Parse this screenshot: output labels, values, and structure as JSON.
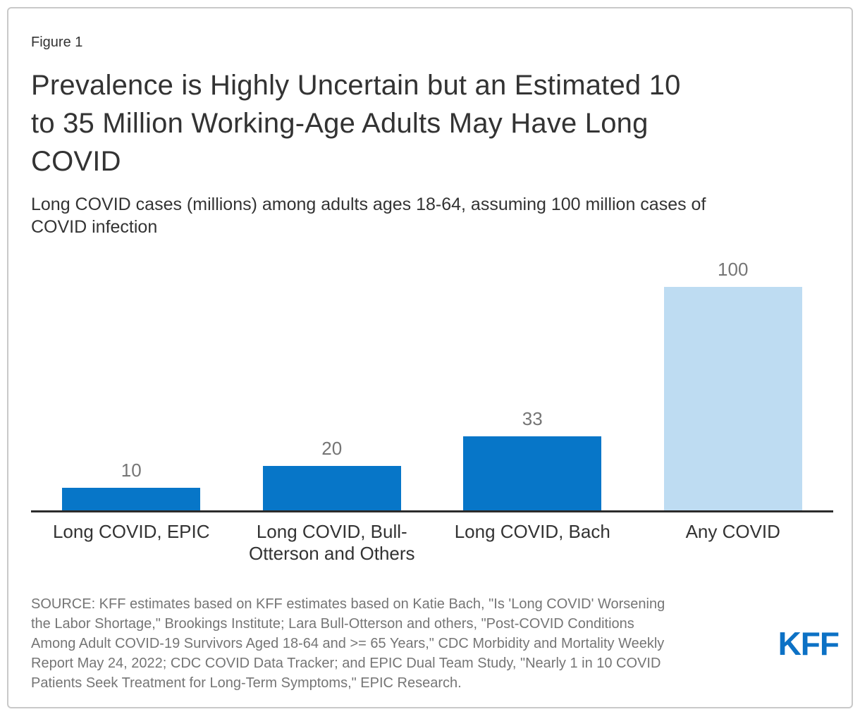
{
  "figure_label": "Figure 1",
  "header": {
    "title_lines": [
      "Prevalence is Highly Uncertain but an Estimated 10",
      "to 35 Million Working-Age Adults May Have Long",
      "COVID"
    ],
    "subtitle_lines": [
      "Long COVID cases (millions) among adults ages 18-64, assuming 100 million cases of",
      "COVID infection"
    ]
  },
  "chart_data": {
    "type": "bar",
    "title": "Prevalence is Highly Uncertain but an Estimated 10 to 35 Million Working-Age Adults May Have Long COVID",
    "subtitle": "Long COVID cases (millions) among adults ages 18-64, assuming 100 million cases of COVID infection",
    "categories": [
      "Long COVID, EPIC",
      "Long COVID, Bull-Otterson and Others",
      "Long COVID, Bach",
      "Any COVID"
    ],
    "values": [
      10,
      20,
      33,
      100
    ],
    "bar_colors": [
      "#0776c8",
      "#0776c8",
      "#0776c8",
      "#bedcf2"
    ],
    "value_label_color": "#757575",
    "xlabel": "",
    "ylabel": "",
    "ylim": [
      0,
      100
    ],
    "grid": "off",
    "legend": "none",
    "data_labels": "above-bars"
  },
  "source": {
    "lines": [
      "SOURCE: KFF estimates based on KFF estimates based on Katie Bach, \"Is 'Long COVID' Worsening",
      "the Labor Shortage,\" Brookings Institute; Lara Bull-Otterson and others, \"Post-COVID Conditions",
      "Among Adult COVID-19 Survivors Aged 18-64 and >= 65 Years,\" CDC Morbidity and Mortality Weekly",
      "Report May 24, 2022; CDC COVID Data Tracker; and EPIC Dual Team Study, \"Nearly 1 in 10 COVID",
      "Patients Seek Treatment for Long-Term Symptoms,\" EPIC Research."
    ]
  },
  "logo_text": "KFF",
  "colors": {
    "bar_primary": "#0776c8",
    "bar_light": "#bedcf2",
    "axis": "#2b2b2b",
    "text_dark": "#333333",
    "text_gray": "#757575",
    "logo_blue": "#0c71c5",
    "border": "#c9c9c9"
  }
}
